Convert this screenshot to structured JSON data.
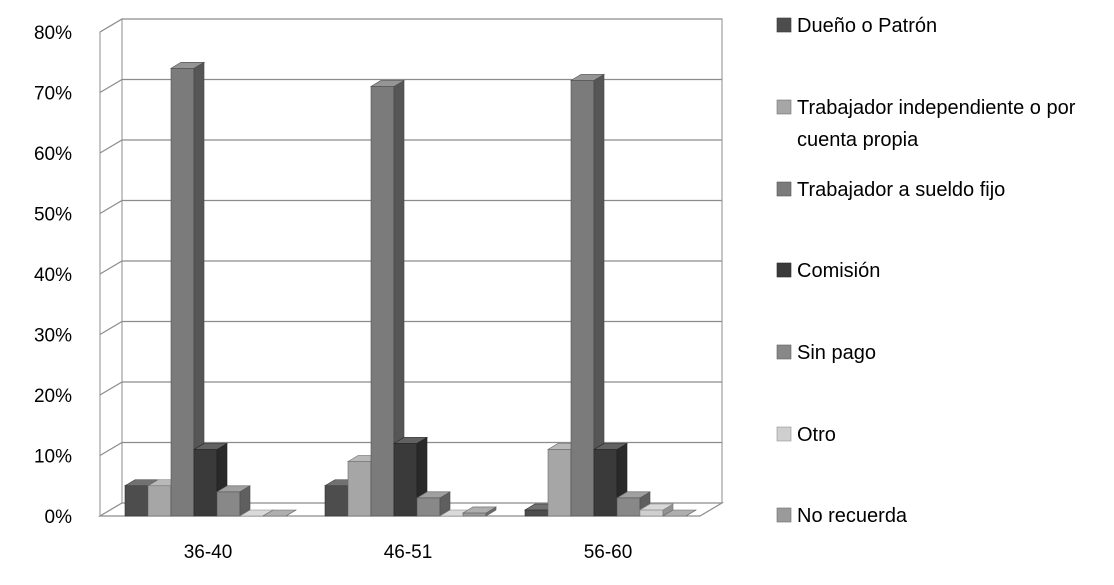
{
  "chart_data": {
    "type": "bar",
    "subtype": "3d-clustered-column",
    "categories": [
      "36-40",
      "46-51",
      "56-60"
    ],
    "series": [
      {
        "name": "Dueño o Patrón",
        "values": [
          5,
          5,
          1
        ],
        "color": "#4d4d4d"
      },
      {
        "name": "Trabajador independiente o por cuenta propia",
        "values": [
          5,
          9,
          11
        ],
        "color": "#a6a6a6"
      },
      {
        "name": "Trabajador a sueldo fijo",
        "values": [
          74,
          71,
          72
        ],
        "color": "#7b7b7b"
      },
      {
        "name": "Comisión",
        "values": [
          11,
          12,
          11
        ],
        "color": "#3a3a3a"
      },
      {
        "name": "Sin pago",
        "values": [
          4,
          3,
          3
        ],
        "color": "#888888"
      },
      {
        "name": "Otro",
        "values": [
          0,
          0,
          1
        ],
        "color": "#cfcfcf"
      },
      {
        "name": "No recuerda",
        "values": [
          0,
          0.5,
          0
        ],
        "color": "#9a9a9a"
      }
    ],
    "y_ticks": [
      "0%",
      "10%",
      "20%",
      "30%",
      "40%",
      "50%",
      "60%",
      "70%",
      "80%"
    ],
    "ylim": [
      0,
      80
    ],
    "y_unit": "%",
    "grid": true,
    "legend_position": "right",
    "title": "",
    "xlabel": "",
    "ylabel": ""
  }
}
